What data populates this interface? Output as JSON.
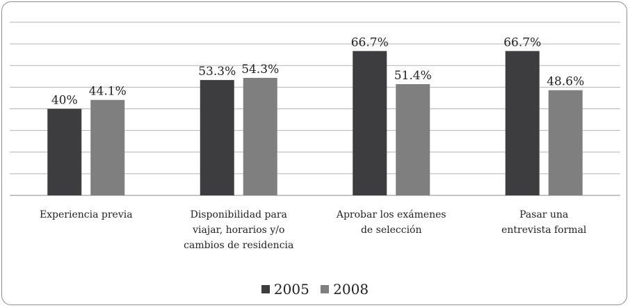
{
  "chart_data": {
    "type": "bar",
    "categories": [
      "Experiencia previa",
      "Disponibilidad para\nviajar, horarios y/o\ncambios de residencia",
      "Aprobar los exámenes\nde selección",
      "Pasar una\nentrevista formal"
    ],
    "series": [
      {
        "name": "2005",
        "color": "#3d3d3f",
        "values": [
          40,
          53.3,
          66.7,
          66.7
        ],
        "labels": [
          "40%",
          "53.3%",
          "66.7%",
          "66.7%"
        ]
      },
      {
        "name": "2008",
        "color": "#7f7f7f",
        "values": [
          44.1,
          54.3,
          51.4,
          48.6
        ],
        "labels": [
          "44.1%",
          "54.3%",
          "51.4%",
          "48.6%"
        ]
      }
    ],
    "ylim": [
      0,
      80
    ],
    "grid": true,
    "legend": "bottom"
  }
}
